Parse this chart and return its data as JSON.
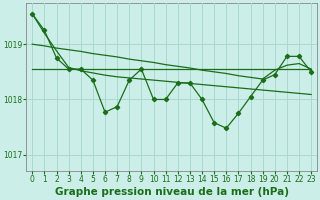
{
  "background_color": "#cceee8",
  "plot_bg_color": "#cceee8",
  "grid_color": "#aad8d0",
  "line_color": "#1a6e1a",
  "xlabel": "Graphe pression niveau de la mer (hPa)",
  "xlabel_fontsize": 7.5,
  "tick_fontsize": 5.5,
  "ylim": [
    1016.7,
    1019.75
  ],
  "xlim": [
    -0.5,
    23.5
  ],
  "yticks": [
    1017,
    1018,
    1019
  ],
  "xticks": [
    0,
    1,
    2,
    3,
    4,
    5,
    6,
    7,
    8,
    9,
    10,
    11,
    12,
    13,
    14,
    15,
    16,
    17,
    18,
    19,
    20,
    21,
    22,
    23
  ],
  "hours": [
    0,
    1,
    2,
    3,
    4,
    5,
    6,
    7,
    8,
    9,
    10,
    11,
    12,
    13,
    14,
    15,
    16,
    17,
    18,
    19,
    20,
    21,
    22,
    23
  ],
  "pressure_jagged": [
    1019.55,
    1019.25,
    1018.75,
    1018.55,
    1018.55,
    1018.35,
    1017.77,
    1017.87,
    1018.35,
    1018.55,
    1018.0,
    1018.0,
    1018.3,
    1018.3,
    1018.0,
    1017.58,
    1017.48,
    1017.75,
    1018.05,
    1018.35,
    1018.45,
    1018.78,
    1018.78,
    1018.5
  ],
  "pressure_trend_steep": [
    1019.55,
    1019.2,
    1018.88,
    1018.58,
    1018.52,
    1018.48,
    1018.44,
    1018.41,
    1018.39,
    1018.37,
    1018.35,
    1018.33,
    1018.31,
    1018.29,
    1018.27,
    1018.25,
    1018.23,
    1018.21,
    1018.19,
    1018.17,
    1018.15,
    1018.13,
    1018.11,
    1018.09
  ],
  "pressure_trend_shallow": [
    1019.0,
    1018.97,
    1018.93,
    1018.9,
    1018.87,
    1018.83,
    1018.8,
    1018.77,
    1018.73,
    1018.7,
    1018.67,
    1018.63,
    1018.6,
    1018.57,
    1018.53,
    1018.5,
    1018.47,
    1018.43,
    1018.4,
    1018.37,
    1018.53,
    1018.62,
    1018.65,
    1018.55
  ],
  "pressure_flat": [
    1018.55,
    1018.55,
    1018.55,
    1018.55,
    1018.55,
    1018.55,
    1018.55,
    1018.55,
    1018.55,
    1018.55,
    1018.55,
    1018.55,
    1018.55,
    1018.55,
    1018.55,
    1018.55,
    1018.55,
    1018.55,
    1018.55,
    1018.55,
    1018.55,
    1018.55,
    1018.55,
    1018.55
  ],
  "marker": "D",
  "markersize": 2.2,
  "linewidth_jagged": 0.9,
  "linewidth_trend": 0.9,
  "linewidth_flat": 0.9
}
